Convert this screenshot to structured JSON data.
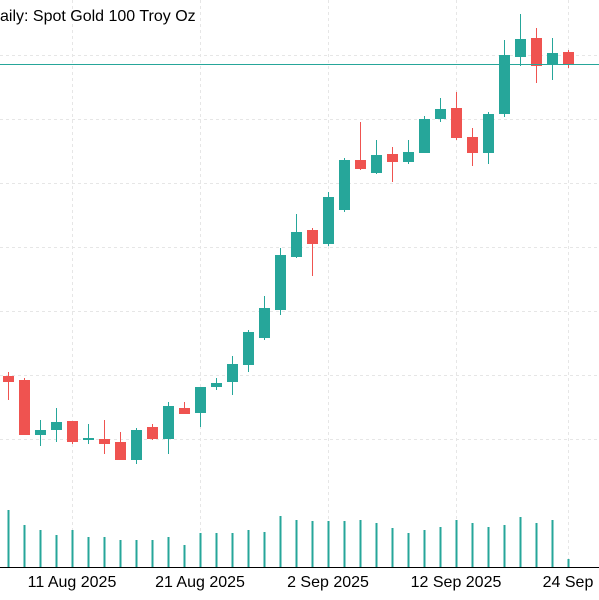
{
  "chart_data": {
    "type": "candlestick",
    "title": "aily:  Spot Gold 100 Troy Oz",
    "categories": [
      null,
      null,
      null,
      null,
      "11 Aug 2025",
      null,
      null,
      null,
      null,
      null,
      null,
      null,
      "21 Aug 2025",
      null,
      null,
      null,
      null,
      null,
      null,
      null,
      "2 Sep 2025",
      null,
      null,
      null,
      null,
      null,
      null,
      null,
      "12 Sep 2025",
      null,
      null,
      null,
      null,
      null,
      null,
      "24 Sep"
    ],
    "open": [
      3429,
      3425,
      3370,
      3375,
      3384,
      3365,
      3366,
      3363,
      3345,
      3378,
      3366,
      3397,
      3392,
      3418,
      3423,
      3440,
      3467,
      3495,
      3548,
      3575,
      3561,
      3595,
      3645,
      3632,
      3651,
      3643,
      3652,
      3686,
      3697,
      3668,
      3652,
      3691,
      3748,
      3767,
      3740,
      3753
    ],
    "high": [
      3433,
      3427,
      3385,
      3397,
      3384,
      3381,
      3385,
      3373,
      3377,
      3381,
      3403,
      3403,
      3418,
      3427,
      3449,
      3475,
      3509,
      3557,
      3591,
      3577,
      3613,
      3647,
      3683,
      3665,
      3658,
      3665,
      3689,
      3707,
      3713,
      3677,
      3693,
      3765,
      3791,
      3777,
      3767,
      3755
    ],
    "low": [
      3405,
      3370,
      3359,
      3363,
      3361,
      3361,
      3351,
      3345,
      3341,
      3365,
      3351,
      3391,
      3378,
      3415,
      3410,
      3433,
      3465,
      3490,
      3547,
      3529,
      3559,
      3593,
      3635,
      3631,
      3623,
      3641,
      3652,
      3683,
      3665,
      3639,
      3641,
      3688,
      3739,
      3722,
      3725,
      3737
    ],
    "close": [
      3423,
      3370,
      3375,
      3383,
      3363,
      3367,
      3361,
      3345,
      3375,
      3366,
      3399,
      3391,
      3418,
      3422,
      3441,
      3473,
      3497,
      3550,
      3573,
      3561,
      3608,
      3645,
      3636,
      3650,
      3643,
      3653,
      3686,
      3696,
      3667,
      3652,
      3691,
      3750,
      3766,
      3739,
      3752,
      3740
    ],
    "volume": [
      57,
      42,
      37,
      32,
      37,
      30,
      30,
      27,
      27,
      27,
      30,
      22,
      34,
      34,
      34,
      37,
      35,
      51,
      47,
      46,
      46,
      46,
      47,
      44,
      39,
      34,
      37,
      40,
      47,
      44,
      40,
      42,
      50,
      44,
      47,
      8
    ],
    "up_color": "#26a69a",
    "down_color": "#ef5350",
    "volume_color": "#26a69a",
    "ylim": [
      3305,
      3805
    ],
    "yticks": [
      3366,
      3430,
      3494,
      3558,
      3622,
      3686,
      3750
    ],
    "volume_lim": [
      0,
      60
    ],
    "price_line": 3741,
    "grid": true
  }
}
